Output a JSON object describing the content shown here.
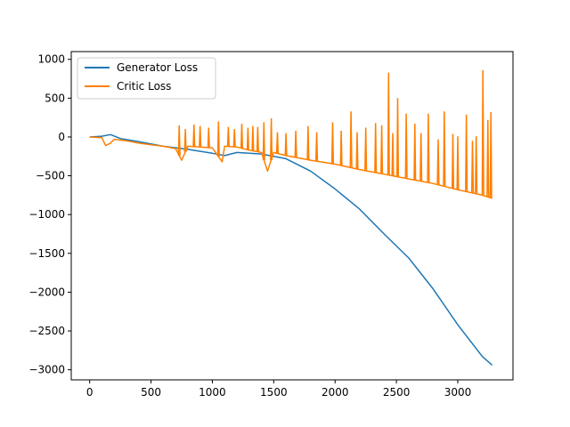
{
  "chart_data": {
    "type": "line",
    "title": "",
    "xlabel": "",
    "ylabel": "",
    "xlim": [
      -150,
      3450
    ],
    "ylim": [
      -3130,
      1100
    ],
    "xticks": [
      0,
      500,
      1000,
      1500,
      2000,
      2500,
      3000
    ],
    "yticks": [
      -3000,
      -2500,
      -2000,
      -1500,
      -1000,
      -500,
      0,
      500,
      1000
    ],
    "xtick_labels": [
      "0",
      "500",
      "1000",
      "1500",
      "2000",
      "2500",
      "3000"
    ],
    "ytick_labels": [
      "−3000",
      "−2500",
      "−2000",
      "−1500",
      "−1000",
      "−500",
      "0",
      "500",
      "1000"
    ],
    "grid": false,
    "legend_position": "top-left",
    "series": [
      {
        "name": "Generator Loss",
        "color": "#1f77b4",
        "x": [
          0,
          100,
          170,
          250,
          400,
          600,
          800,
          1000,
          1100,
          1200,
          1400,
          1600,
          1800,
          2000,
          2200,
          2400,
          2600,
          2800,
          3000,
          3200,
          3280
        ],
        "y": [
          0,
          10,
          30,
          -20,
          -60,
          -120,
          -160,
          -210,
          -240,
          -200,
          -220,
          -280,
          -440,
          -670,
          -930,
          -1250,
          -1560,
          -1960,
          -2420,
          -2830,
          -2940
        ]
      },
      {
        "name": "Critic Loss",
        "color": "#ff7f00",
        "x": [
          0,
          100,
          130,
          170,
          200,
          300,
          400,
          500,
          600,
          700,
          750,
          800,
          900,
          1000,
          1080,
          1100,
          1200,
          1300,
          1400,
          1450,
          1500,
          1600,
          1800,
          2000,
          2200,
          2400,
          2600,
          2800,
          3000,
          3200,
          3280
        ],
        "y": [
          0,
          -10,
          -110,
          -80,
          -30,
          -50,
          -80,
          -100,
          -120,
          -150,
          -300,
          -120,
          -130,
          -140,
          -320,
          -120,
          -130,
          -170,
          -200,
          -440,
          -200,
          -240,
          -300,
          -350,
          -420,
          -480,
          -540,
          -600,
          -680,
          -750,
          -790
        ]
      }
    ],
    "spikes": {
      "Critic Loss": {
        "x": [
          730,
          780,
          850,
          900,
          970,
          1050,
          1130,
          1180,
          1240,
          1290,
          1330,
          1370,
          1420,
          1480,
          1530,
          1600,
          1680,
          1780,
          1850,
          1980,
          2050,
          2130,
          2180,
          2250,
          2330,
          2380,
          2436,
          2470,
          2510,
          2580,
          2650,
          2700,
          2760,
          2840,
          2890,
          2960,
          3000,
          3070,
          3120,
          3150,
          3205,
          3245,
          3270
        ],
        "y": [
          150,
          100,
          160,
          140,
          120,
          200,
          130,
          100,
          170,
          120,
          140,
          130,
          190,
          240,
          60,
          50,
          80,
          140,
          60,
          190,
          80,
          330,
          60,
          120,
          180,
          150,
          830,
          50,
          500,
          300,
          170,
          50,
          300,
          -30,
          330,
          40,
          10,
          290,
          -50,
          10,
          860,
          220,
          320
        ]
      }
    }
  }
}
